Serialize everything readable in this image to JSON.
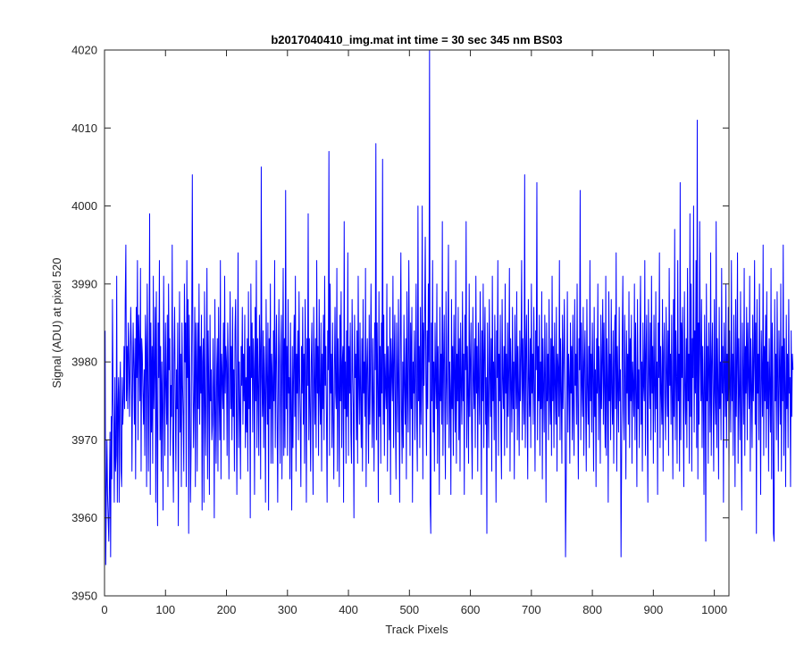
{
  "chart_data": {
    "type": "line",
    "title": "b2017040410_img.mat int time = 30 sec  345 nm BS03",
    "xlabel": "Track Pixels",
    "ylabel": "Signal (ADU) at pixel 520",
    "xlim": [
      0,
      1024
    ],
    "ylim": [
      3950,
      4020
    ],
    "xticks": [
      0,
      100,
      200,
      300,
      400,
      500,
      600,
      700,
      800,
      900,
      1000
    ],
    "yticks": [
      3950,
      3960,
      3970,
      3980,
      3990,
      4000,
      4010,
      4020
    ],
    "grid": false,
    "line_color": "#0000ff",
    "axes_color": "#262626",
    "series": [
      {
        "x_start": 1,
        "x_step": 1,
        "values": [
          3984,
          3954,
          3963,
          3970,
          3963,
          3960,
          3957,
          3964,
          3971,
          3955,
          3973,
          3965,
          3988,
          3976,
          3972,
          3962,
          3978,
          3966,
          3968,
          3991,
          3962,
          3974,
          3978,
          3962,
          3976,
          3980,
          3966,
          3964,
          3978,
          3972,
          3975,
          3982,
          3974,
          3988,
          3995,
          3975,
          3982,
          3974,
          3985,
          3981,
          3973,
          3979,
          3987,
          3982,
          3966,
          3977,
          3985,
          3979,
          3972,
          3983,
          3965,
          3987,
          3978,
          3993,
          3970,
          3986,
          3982,
          3975,
          3992,
          3966,
          3983,
          3981,
          3976,
          3972,
          3979,
          3968,
          3986,
          3982,
          3964,
          3990,
          3980,
          3966,
          3978,
          3999,
          3963,
          3985,
          3971,
          3982,
          3967,
          3991,
          3974,
          3979,
          3987,
          3962,
          3989,
          3972,
          3959,
          3985,
          3978,
          3993,
          3970,
          3982,
          3966,
          3980,
          3974,
          3961,
          3991,
          3978,
          3968,
          3985,
          3977,
          3972,
          3986,
          3964,
          3990,
          3979,
          3983,
          3968,
          3977,
          3973,
          3995,
          3970,
          3962,
          3981,
          3987,
          3975,
          3966,
          3979,
          3974,
          3985,
          3959,
          3976,
          3989,
          3971,
          3981,
          3964,
          3985,
          3977,
          3973,
          3966,
          3990,
          3980,
          3985,
          3964,
          3993,
          3978,
          3988,
          3958,
          3986,
          3977,
          3962,
          3969,
          3984,
          4004,
          3979,
          3969,
          3975,
          3987,
          3964,
          3985,
          3980,
          3966,
          3985,
          3974,
          3990,
          3972,
          3982,
          3976,
          3986,
          3961,
          3980,
          3983,
          3962,
          3989,
          3975,
          3968,
          3979,
          3992,
          3965,
          3984,
          3977,
          3963,
          3986,
          3975,
          3979,
          3970,
          3972,
          3983,
          3976,
          3960,
          3988,
          3974,
          3967,
          3979,
          3983,
          3966,
          3987,
          3975,
          3970,
          3993,
          3965,
          3981,
          3978,
          3974,
          3985,
          3970,
          3991,
          3976,
          3982,
          3980,
          3968,
          3985,
          3979,
          3965,
          3978,
          3989,
          3974,
          3982,
          3970,
          3987,
          3973,
          3979,
          3966,
          3984,
          3988,
          3976,
          3963,
          3978,
          3994,
          3969,
          3980,
          3974,
          3965,
          3982,
          3977,
          3987,
          3972,
          3981,
          3975,
          3986,
          3969,
          3978,
          3971,
          3983,
          3966,
          3989,
          3974,
          3982,
          3960,
          3990,
          3978,
          3985,
          3971,
          3983,
          3979,
          3963,
          3987,
          3975,
          3993,
          3969,
          3983,
          3977,
          3968,
          3986,
          3981,
          3965,
          4005,
          3978,
          3973,
          3984,
          3969,
          3982,
          3976,
          3962,
          3988,
          3978,
          3972,
          3985,
          3961,
          3983,
          3974,
          3990,
          3967,
          3981,
          3978,
          3967,
          3984,
          3975,
          3993,
          3969,
          3980,
          3986,
          3973,
          3962,
          3978,
          3988,
          3976,
          3967,
          3982,
          3986,
          3965,
          3979,
          3992,
          3968,
          3983,
          3969,
          4002,
          3974,
          3982,
          3968,
          3988,
          3976,
          3978,
          3965,
          3985,
          3974,
          3961,
          3982,
          3969,
          3979,
          3986,
          3973,
          3991,
          3966,
          3981,
          3976,
          3984,
          3970,
          3989,
          3978,
          3973,
          3964,
          3982,
          3976,
          3987,
          3972,
          3981,
          3967,
          3988,
          3979,
          3962,
          3983,
          3977,
          3999,
          3970,
          3983,
          3974,
          3966,
          3980,
          3985,
          3975,
          3963,
          3987,
          3978,
          3972,
          3983,
          3969,
          3993,
          3976,
          3982,
          3968,
          3988,
          3976,
          3972,
          3985,
          3966,
          3981,
          3974,
          3986,
          3970,
          3991,
          3977,
          3982,
          3973,
          3962,
          3984,
          3979,
          4007,
          3968,
          3990,
          3976,
          3981,
          3969,
          3985,
          3973,
          3965,
          3979,
          3987,
          3976,
          3974,
          3992,
          3966,
          3983,
          3978,
          3964,
          3986,
          3975,
          3989,
          3969,
          3980,
          3982,
          3962,
          3998,
          3974,
          3980,
          3967,
          3984,
          3973,
          3994,
          3968,
          3982,
          3976,
          3985,
          3971,
          3967,
          3988,
          3979,
          3974,
          3960,
          3986,
          3978,
          3981,
          3970,
          3984,
          3967,
          3991,
          3977,
          3972,
          3985,
          3975,
          3969,
          3983,
          3966,
          3988,
          3976,
          3980,
          3973,
          3992,
          3964,
          3979,
          3983,
          3975,
          3967,
          3986,
          3972,
          3979,
          3990,
          3977,
          3969,
          3983,
          3975,
          3966,
          3985,
          3979,
          4008,
          3970,
          3985,
          3977,
          3962,
          3989,
          3973,
          3982,
          3967,
          3985,
          3976,
          4006,
          3972,
          3986,
          3968,
          3981,
          3977,
          3974,
          3990,
          3966,
          3982,
          3978,
          3970,
          3987,
          3963,
          3983,
          3979,
          3975,
          3991,
          3969,
          3980,
          3986,
          3973,
          3965,
          3985,
          3978,
          3971,
          3988,
          3976,
          3962,
          3983,
          3994,
          3974,
          3967,
          3980,
          3969,
          3986,
          3977,
          3972,
          3983,
          3965,
          3989,
          3976,
          3971,
          3993,
          3981,
          3968,
          3985,
          3974,
          3987,
          3962,
          3980,
          3976,
          3984,
          3970,
          3978,
          3990,
          3972,
          3966,
          4000,
          3975,
          3982,
          3969,
          3987,
          3972,
          3978,
          4000,
          3965,
          3985,
          3977,
          3986,
          3996,
          3978,
          3968,
          3984,
          3974,
          3990,
          3980,
          4020,
          3962,
          3958,
          3985,
          3975,
          3993,
          3971,
          3980,
          3966,
          3985,
          3978,
          3974,
          3990,
          3967,
          3982,
          3977,
          3963,
          3987,
          3975,
          3981,
          3972,
          3998,
          3968,
          3980,
          3986,
          3974,
          3965,
          3989,
          3978,
          3972,
          3983,
          3995,
          3969,
          3980,
          3976,
          3963,
          3988,
          3974,
          3982,
          3968,
          3986,
          3978,
          3971,
          3993,
          3967,
          3981,
          3975,
          3987,
          3970,
          3983,
          3966,
          3985,
          3977,
          3972,
          3989,
          3975,
          3981,
          3963,
          3986,
          3979,
          3998,
          3969,
          3982,
          3976,
          3967,
          3990,
          3973,
          3980,
          3985,
          3971,
          3965,
          3987,
          3978,
          3974,
          3983,
          3969,
          3991,
          3976,
          3982,
          3966,
          3985,
          3977,
          3972,
          3989,
          3980,
          3963,
          3984,
          3975,
          3990,
          3969,
          3981,
          3987,
          3972,
          3978,
          3958,
          3985,
          3975,
          3969,
          3988,
          3979,
          3973,
          3983,
          3966,
          3991,
          3975,
          3980,
          3970,
          3986,
          3977,
          3962,
          3984,
          3978,
          3993,
          3968,
          3981,
          3975,
          3986,
          3971,
          3965,
          3988,
          3978,
          3974,
          3982,
          3968,
          3990,
          3976,
          3981,
          3969,
          3985,
          3973,
          3979,
          3992,
          3966,
          3983,
          3977,
          3971,
          3987,
          3974,
          3980,
          3965,
          3986,
          3979,
          3974,
          3989,
          3970,
          3982,
          3976,
          3968,
          3984,
          3975,
          3981,
          3993,
          3970,
          3983,
          3977,
          3972,
          4004,
          3969,
          3981,
          3986,
          3974,
          3965,
          3988,
          3978,
          3973,
          3983,
          3969,
          3990,
          3976,
          3981,
          3972,
          3987,
          3977,
          3966,
          3984,
          3979,
          4003,
          3970,
          3982,
          3975,
          3986,
          3968,
          3980,
          3974,
          3989,
          3965,
          3983,
          3977,
          3971,
          3986,
          3978,
          3962,
          3985,
          3975,
          3981,
          3970,
          3988,
          3976,
          3972,
          3983,
          3968,
          3991,
          3975,
          3982,
          3969,
          3985,
          3977,
          3972,
          3987,
          3966,
          3981,
          3979,
          3973,
          3993,
          3970,
          3983,
          3976,
          3967,
          3986,
          3974,
          3980,
          3988,
          3978,
          3955,
          3964,
          3975,
          3989,
          3971,
          3981,
          3978,
          3967,
          3985,
          3976,
          3982,
          3970,
          3986,
          3974,
          3968,
          3988,
          3977,
          3981,
          3972,
          3990,
          3975,
          3965,
          3983,
          3979,
          4002,
          3970,
          3985,
          3977,
          3973,
          3987,
          3968,
          3980,
          3984,
          3974,
          3966,
          3988,
          3977,
          3972,
          3982,
          3969,
          3993,
          3975,
          3981,
          3971,
          3985,
          3978,
          3966,
          3987,
          3973,
          3979,
          3964,
          3983,
          3976,
          3990,
          3970,
          3982,
          3977,
          3967,
          3986,
          3974,
          3980,
          3988,
          3972,
          3985,
          3976,
          3969,
          3991,
          3968,
          3983,
          3978,
          3962,
          3989,
          3975,
          3981,
          3970,
          3988,
          3976,
          3972,
          3984,
          3967,
          3980,
          3986,
          3974,
          3994,
          3966,
          3982,
          3977,
          3971,
          3987,
          3975,
          3979,
          3955,
          3968,
          3983,
          3991,
          3974,
          3970,
          3986,
          3978,
          3965,
          3984,
          3976,
          3981,
          3972,
          3989,
          3969,
          3983,
          3975,
          3986,
          3967,
          3980,
          3977,
          3973,
          3990,
          3970,
          3985,
          3976,
          3964,
          3988,
          3974,
          3979,
          3969,
          3983,
          3991,
          3972,
          3980,
          3966,
          3985,
          3977,
          3975,
          3993,
          3968,
          3981,
          3986,
          3973,
          3962,
          3988,
          3979,
          3974,
          3985,
          3970,
          3991,
          3976,
          3982,
          3967,
          3986,
          3977,
          3971,
          3989,
          3974,
          3980,
          3963,
          3985,
          3978,
          3994,
          3969,
          3982,
          3976,
          3972,
          3988,
          3966,
          3981,
          3985,
          3975,
          3970,
          3987,
          3979,
          3973,
          3984,
          3968,
          3992,
          3977,
          3981,
          3972,
          3986,
          3975,
          3965,
          3988,
          3973,
          3997,
          3970,
          3984,
          3978,
          3967,
          3993,
          3975,
          3981,
          3966,
          4003,
          3970,
          3985,
          3978,
          3987,
          3974,
          3964,
          3989,
          3977,
          3972,
          3983,
          3969,
          3992,
          3975,
          3981,
          3967,
          3999,
          3973,
          3990,
          3966,
          3983,
          3978,
          4000,
          3971,
          3984,
          3976,
          3993,
          3969,
          4011,
          3965,
          3985,
          3972,
          3998,
          3981,
          3975,
          3988,
          3969,
          3982,
          3976,
          3963,
          3986,
          3978,
          3957,
          3990,
          3975,
          3982,
          3967,
          3985,
          3979,
          3971,
          3994,
          3968,
          3980,
          3985,
          3974,
          3966,
          3988,
          3976,
          3972,
          3998,
          3969,
          3983,
          3977,
          3965,
          3987,
          3974,
          3980,
          3970,
          3992,
          3976,
          3982,
          3962,
          3985,
          3979,
          3973,
          3990,
          3969,
          3981,
          3975,
          3987,
          3966,
          3984,
          3977,
          3971,
          3993,
          3975,
          3981,
          3968,
          3986,
          3978,
          3964,
          3988,
          3973,
          3980,
          3994,
          3967,
          3983,
          3976,
          3970,
          3989,
          3974,
          3961,
          3985,
          3978,
          3972,
          3992,
          3968,
          3982,
          3976,
          3987,
          3970,
          3985,
          3978,
          3974,
          3991,
          3966,
          3983,
          3977,
          3969,
          3986,
          3975,
          3980,
          3993,
          3972,
          3985,
          3958,
          3988,
          3976,
          3981,
          3970,
          3990,
          3977,
          3963,
          3984,
          3979,
          3973,
          3995,
          3968,
          3982,
          3975,
          3986,
          3969,
          3989,
          3974,
          3980,
          3966,
          3983,
          3977,
          3971,
          3992,
          3965,
          3985,
          3978,
          3958,
          3957,
          3988,
          3975,
          3981,
          3970,
          3989,
          3977,
          3966,
          3984,
          3979,
          3972,
          3990,
          3966,
          3982,
          3975,
          3995,
          3968,
          3983,
          3977,
          3964,
          3986,
          3974,
          3981,
          3969,
          3988,
          3976,
          3978,
          3964,
          3984,
          3973,
          3981,
          3979
        ]
      }
    ]
  }
}
